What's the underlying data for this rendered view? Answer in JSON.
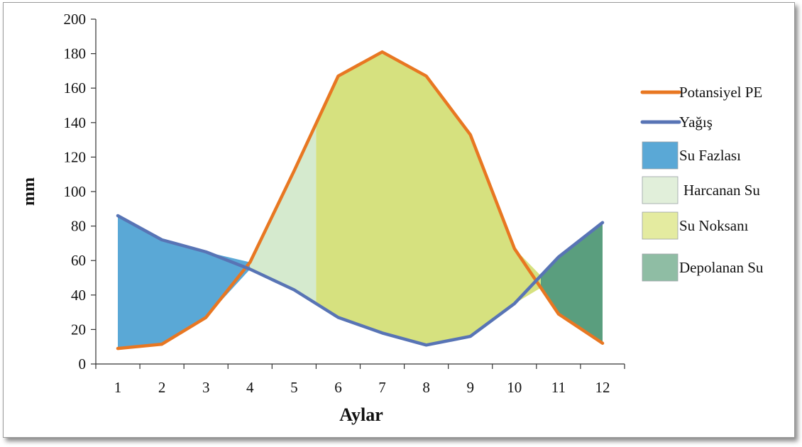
{
  "chart_data": {
    "type": "line",
    "title": "",
    "xlabel": "Aylar",
    "ylabel": "mm",
    "categories": [
      "1",
      "2",
      "3",
      "4",
      "5",
      "6",
      "7",
      "8",
      "9",
      "10",
      "11",
      "12"
    ],
    "ylim": [
      0,
      200
    ],
    "yticks": [
      "0",
      "20",
      "40",
      "60",
      "80",
      "100",
      "120",
      "140",
      "160",
      "180",
      "200"
    ],
    "grid": false,
    "legend_position": "right",
    "series": [
      {
        "name": "Potansiyel PE",
        "color": "#e87722",
        "values": [
          9,
          11.5,
          27,
          59,
          112,
          167,
          181,
          167,
          133,
          67,
          29,
          12
        ]
      },
      {
        "name": "Yağış",
        "color": "#5874b5",
        "values": [
          86,
          72,
          65,
          55,
          43,
          27,
          18,
          11,
          16,
          35,
          62,
          82
        ]
      }
    ],
    "areas": [
      {
        "name": "Su Fazlası",
        "color": "#5aa8d6",
        "from_x": 1,
        "to_x": 4
      },
      {
        "name": "Harcanan Su",
        "color": "#d5eace",
        "from_x": 4,
        "to_x": 5.5
      },
      {
        "name": "Su Noksanı",
        "color": "#d6e17f",
        "from_x": 5.5,
        "to_x": 10.6
      },
      {
        "name": "Depolanan Su",
        "color": "#5a9e7e",
        "from_x": 10.6,
        "to_x": 12
      }
    ],
    "legend": [
      {
        "label": "Potansiyel PE",
        "kind": "line",
        "color": "#e87722"
      },
      {
        "label": "Yağış",
        "kind": "line",
        "color": "#5874b5"
      },
      {
        "label": "Su Fazlası",
        "kind": "box",
        "color": "#5aa8d6"
      },
      {
        "label": "Harcanan Su",
        "kind": "box",
        "color": "#e1efda"
      },
      {
        "label": "Su Noksanı",
        "kind": "box",
        "color": "#e4eba0"
      },
      {
        "label": "Depolanan Su",
        "kind": "box",
        "color": "#8fbda4"
      }
    ]
  }
}
